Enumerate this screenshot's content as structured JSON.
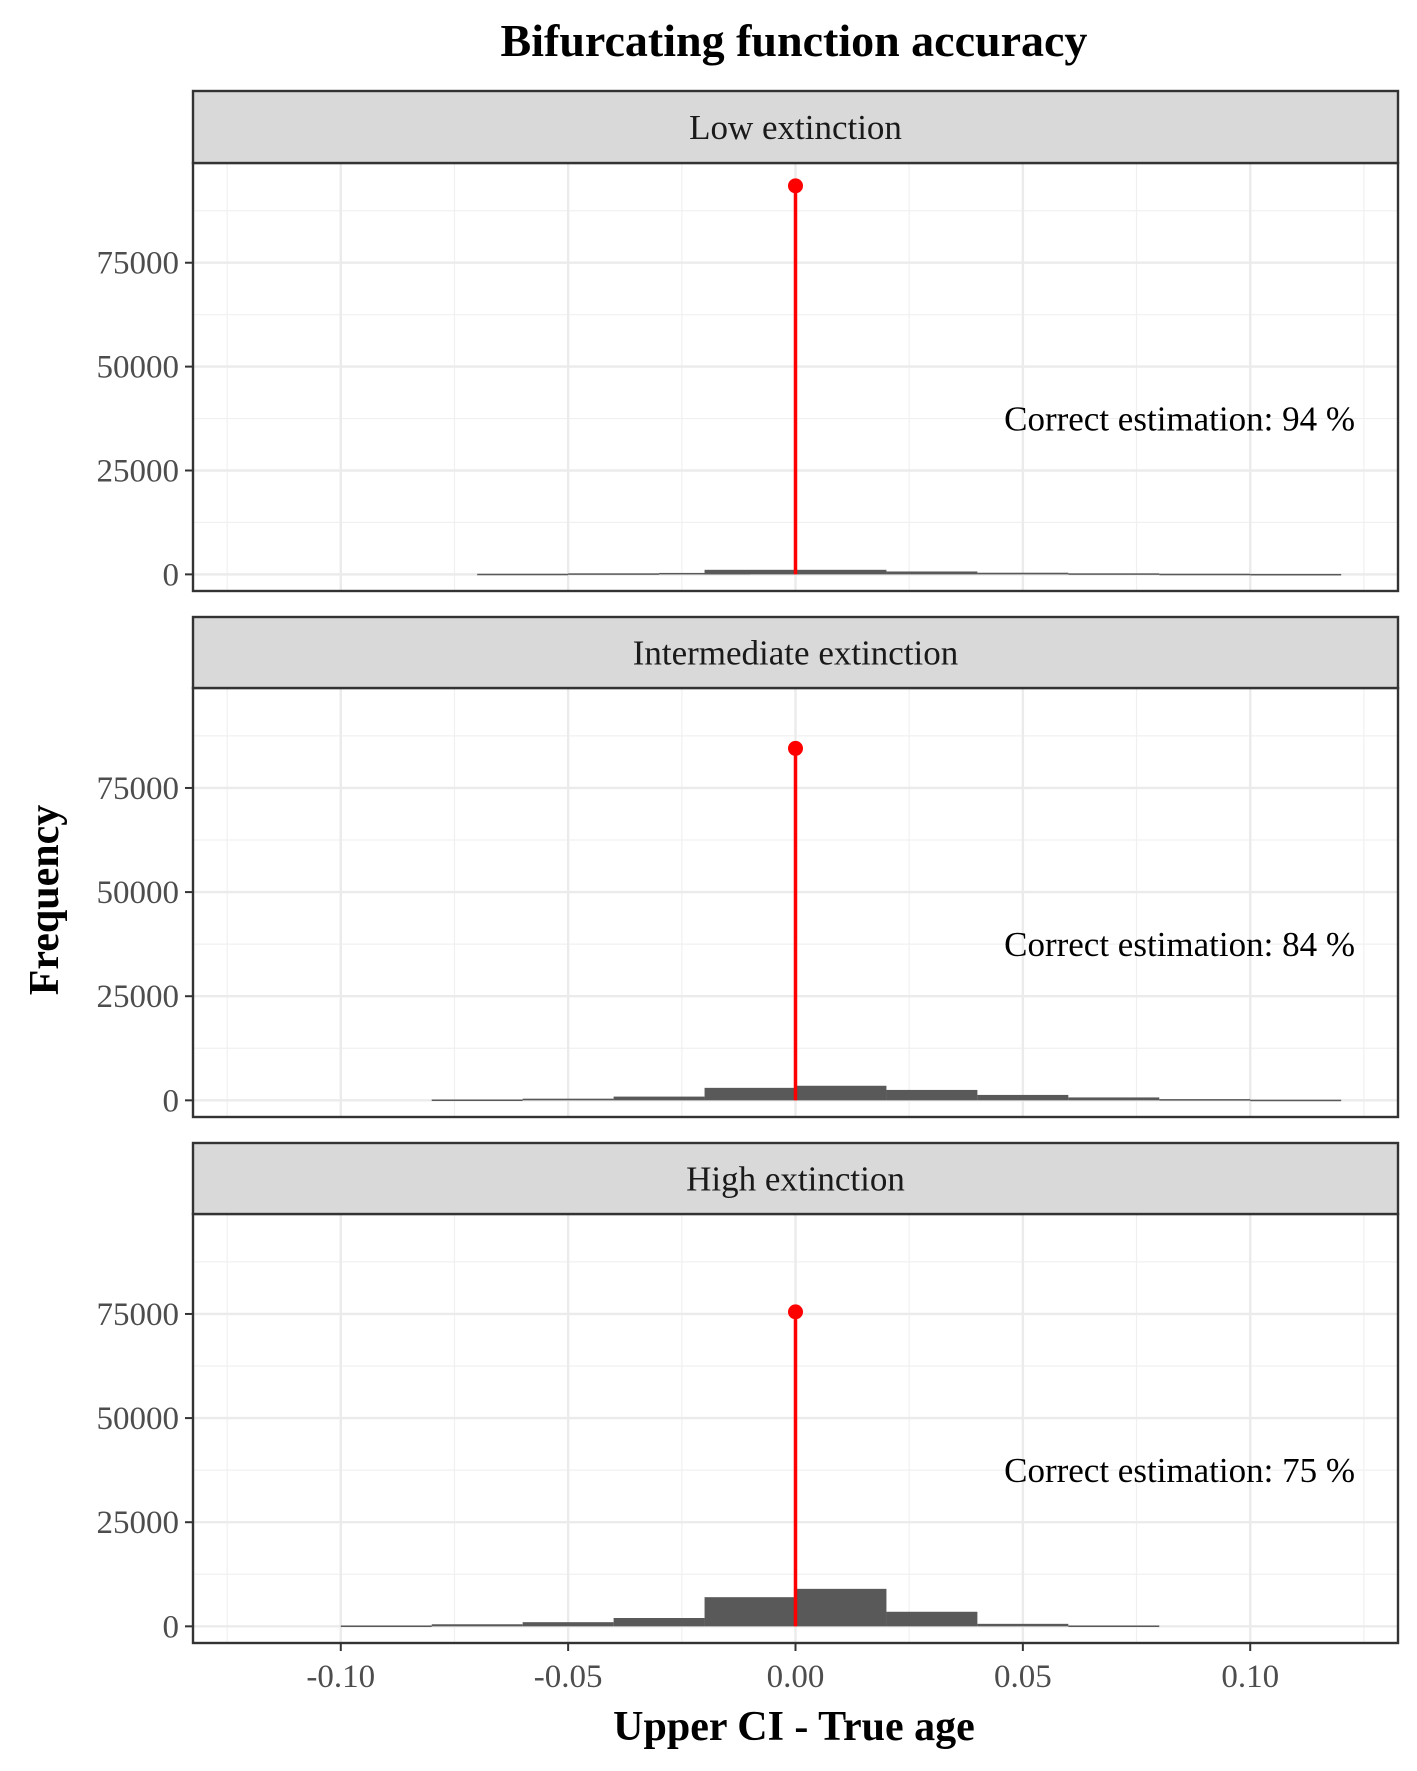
{
  "chart_data": {
    "type": "bar",
    "title": "Bifurcating function accuracy",
    "xlabel": "Upper CI - True age",
    "ylabel": "Frequency",
    "xlim": [
      -0.1325,
      0.1325
    ],
    "ylim": [
      -4000,
      99000
    ],
    "x_ticks": [
      -0.1,
      -0.05,
      0.0,
      0.05,
      0.1
    ],
    "x_tick_labels": [
      "-0.10",
      "-0.05",
      "0.00",
      "0.05",
      "0.10"
    ],
    "y_ticks": [
      0,
      25000,
      50000,
      75000
    ],
    "y_tick_labels": [
      "0",
      "25000",
      "50000",
      "75000"
    ],
    "grid": true,
    "bin_width": 0.02,
    "bar_color": "#595959",
    "highlight_color": "#ff0000",
    "panel_border_color": "#333333",
    "strip_fill": "#d9d9d9",
    "panels": [
      {
        "name": "Low extinction",
        "annotation": "Correct estimation: 94 %",
        "exact_value": 0.0,
        "exact_count": 93500,
        "bins": [
          {
            "x": -0.06,
            "count": 150
          },
          {
            "x": -0.04,
            "count": 250
          },
          {
            "x": -0.02,
            "count": 350
          },
          {
            "x": -0.01,
            "count": 1100
          },
          {
            "x": 0.01,
            "count": 1100
          },
          {
            "x": 0.03,
            "count": 700
          },
          {
            "x": 0.05,
            "count": 400
          },
          {
            "x": 0.07,
            "count": 250
          },
          {
            "x": 0.09,
            "count": 150
          },
          {
            "x": 0.11,
            "count": 100
          }
        ]
      },
      {
        "name": "Intermediate extinction",
        "annotation": "Correct estimation: 84 %",
        "exact_value": 0.0,
        "exact_count": 84500,
        "bins": [
          {
            "x": -0.07,
            "count": 200
          },
          {
            "x": -0.05,
            "count": 400
          },
          {
            "x": -0.03,
            "count": 900
          },
          {
            "x": -0.01,
            "count": 3000
          },
          {
            "x": 0.01,
            "count": 3500
          },
          {
            "x": 0.03,
            "count": 2500
          },
          {
            "x": 0.05,
            "count": 1300
          },
          {
            "x": 0.07,
            "count": 700
          },
          {
            "x": 0.09,
            "count": 300
          },
          {
            "x": 0.11,
            "count": 150
          }
        ]
      },
      {
        "name": "High extinction",
        "annotation": "Correct estimation: 75 %",
        "exact_value": 0.0,
        "exact_count": 75500,
        "bins": [
          {
            "x": -0.09,
            "count": 200
          },
          {
            "x": -0.07,
            "count": 500
          },
          {
            "x": -0.05,
            "count": 1000
          },
          {
            "x": -0.03,
            "count": 2000
          },
          {
            "x": -0.01,
            "count": 7000
          },
          {
            "x": 0.01,
            "count": 9000
          },
          {
            "x": 0.03,
            "count": 3500
          },
          {
            "x": 0.05,
            "count": 600
          },
          {
            "x": 0.07,
            "count": 200
          }
        ]
      }
    ]
  }
}
